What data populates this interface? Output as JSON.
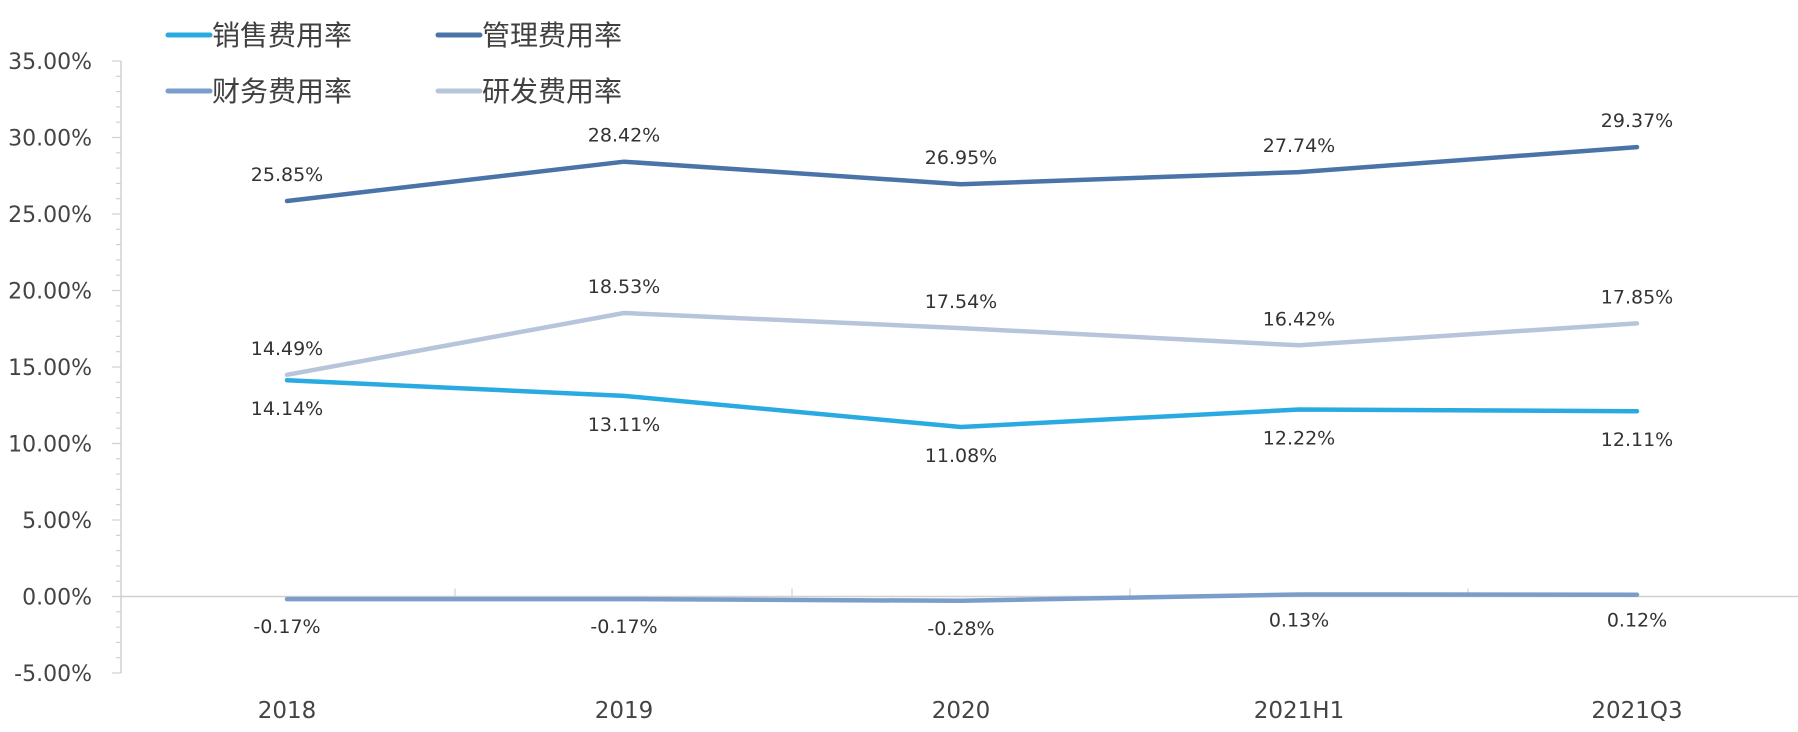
{
  "chart_data": {
    "type": "line",
    "title": "",
    "xlabel": "",
    "ylabel": "",
    "categories": [
      "2018",
      "2019",
      "2020",
      "2021H1",
      "2021Q3"
    ],
    "ylim": [
      -5,
      35
    ],
    "yticks": [
      -5,
      0,
      5,
      10,
      15,
      20,
      25,
      30,
      35
    ],
    "ytick_labels": [
      "-5.00%",
      "0.00%",
      "5.00%",
      "10.00%",
      "15.00%",
      "20.00%",
      "25.00%",
      "30.00%",
      "35.00%"
    ],
    "grid": false,
    "legend_position": "top-left",
    "series": [
      {
        "name": "销售费用率",
        "color": "#29abe2",
        "values": [
          14.14,
          13.11,
          11.08,
          12.22,
          12.11
        ],
        "labels": [
          "14.14%",
          "13.11%",
          "11.08%",
          "12.22%",
          "12.11%"
        ],
        "label_position": "below"
      },
      {
        "name": "管理费用率",
        "color": "#4a74a8",
        "values": [
          25.85,
          28.42,
          26.95,
          27.74,
          29.37
        ],
        "labels": [
          "25.85%",
          "28.42%",
          "26.95%",
          "27.74%",
          "29.37%"
        ],
        "label_position": "above"
      },
      {
        "name": "财务费用率",
        "color": "#7b9dc9",
        "values": [
          -0.17,
          -0.17,
          -0.28,
          0.13,
          0.12
        ],
        "labels": [
          "-0.17%",
          "-0.17%",
          "-0.28%",
          "0.13%",
          "0.12%"
        ],
        "label_position": "below"
      },
      {
        "name": "研发费用率",
        "color": "#b7c5da",
        "values": [
          14.49,
          18.53,
          17.54,
          16.42,
          17.85
        ],
        "labels": [
          "14.49%",
          "18.53%",
          "17.54%",
          "16.42%",
          "17.85%"
        ],
        "label_position": "above"
      }
    ]
  }
}
